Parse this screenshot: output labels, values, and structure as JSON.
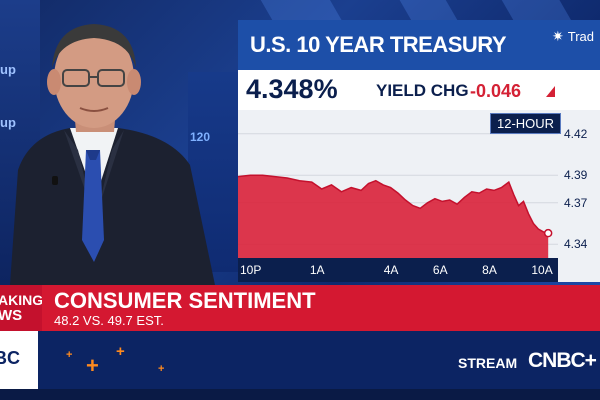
{
  "background": {
    "left_wall_text": [
      "up",
      "up"
    ],
    "monitor_text": "120"
  },
  "chart": {
    "title": "U.S. 10 YEAR TREASURY",
    "brand": "Trad",
    "yield_value": "4.348%",
    "yield_change_label": "YIELD CHG",
    "yield_change_value": "-0.046",
    "period": "12-HOUR",
    "colors": {
      "fill": "#d9213a",
      "line": "#c4112d",
      "band": "#1d4fa8",
      "axis_bg": "#0b1f4d"
    }
  },
  "chart_data": {
    "type": "area",
    "title": "U.S. 10 YEAR TREASURY",
    "x_tick_labels": [
      "10P",
      "1A",
      "4A",
      "6A",
      "8A",
      "10A"
    ],
    "x_tick_hours": [
      22,
      25,
      28,
      30,
      32,
      34
    ],
    "y_tick_labels": [
      "4.42",
      "4.39",
      "4.37",
      "4.34"
    ],
    "y_ticks": [
      4.42,
      4.39,
      4.37,
      4.34
    ],
    "ylim": [
      4.33,
      4.43
    ],
    "xlim": [
      22,
      35
    ],
    "series": [
      {
        "values": [
          [
            22.0,
            4.389
          ],
          [
            22.5,
            4.39
          ],
          [
            23.0,
            4.39
          ],
          [
            23.5,
            4.389
          ],
          [
            24.0,
            4.388
          ],
          [
            24.5,
            4.386
          ],
          [
            25.0,
            4.385
          ],
          [
            25.4,
            4.38
          ],
          [
            25.8,
            4.383
          ],
          [
            26.2,
            4.378
          ],
          [
            26.6,
            4.381
          ],
          [
            27.0,
            4.379
          ],
          [
            27.3,
            4.384
          ],
          [
            27.6,
            4.386
          ],
          [
            27.9,
            4.383
          ],
          [
            28.2,
            4.381
          ],
          [
            28.5,
            4.377
          ],
          [
            28.8,
            4.372
          ],
          [
            29.1,
            4.368
          ],
          [
            29.4,
            4.366
          ],
          [
            29.7,
            4.37
          ],
          [
            30.0,
            4.373
          ],
          [
            30.3,
            4.371
          ],
          [
            30.6,
            4.372
          ],
          [
            30.9,
            4.369
          ],
          [
            31.2,
            4.374
          ],
          [
            31.5,
            4.378
          ],
          [
            31.8,
            4.377
          ],
          [
            32.1,
            4.38
          ],
          [
            32.4,
            4.379
          ],
          [
            32.7,
            4.381
          ],
          [
            33.0,
            4.385
          ],
          [
            33.2,
            4.376
          ],
          [
            33.4,
            4.368
          ],
          [
            33.6,
            4.371
          ],
          [
            33.8,
            4.362
          ],
          [
            34.0,
            4.355
          ],
          [
            34.2,
            4.351
          ],
          [
            34.4,
            4.349
          ],
          [
            34.6,
            4.348
          ]
        ]
      }
    ],
    "grid": true,
    "current_value": 4.348
  },
  "lower_third": {
    "breaking_lines": [
      "AKING",
      "WS"
    ],
    "headline": "CONSUMER SENTIMENT",
    "subline": "48.2 VS. 49.7 EST.",
    "logo_text": "BC",
    "stream_label": "STREAM",
    "network": "CNBC+"
  }
}
